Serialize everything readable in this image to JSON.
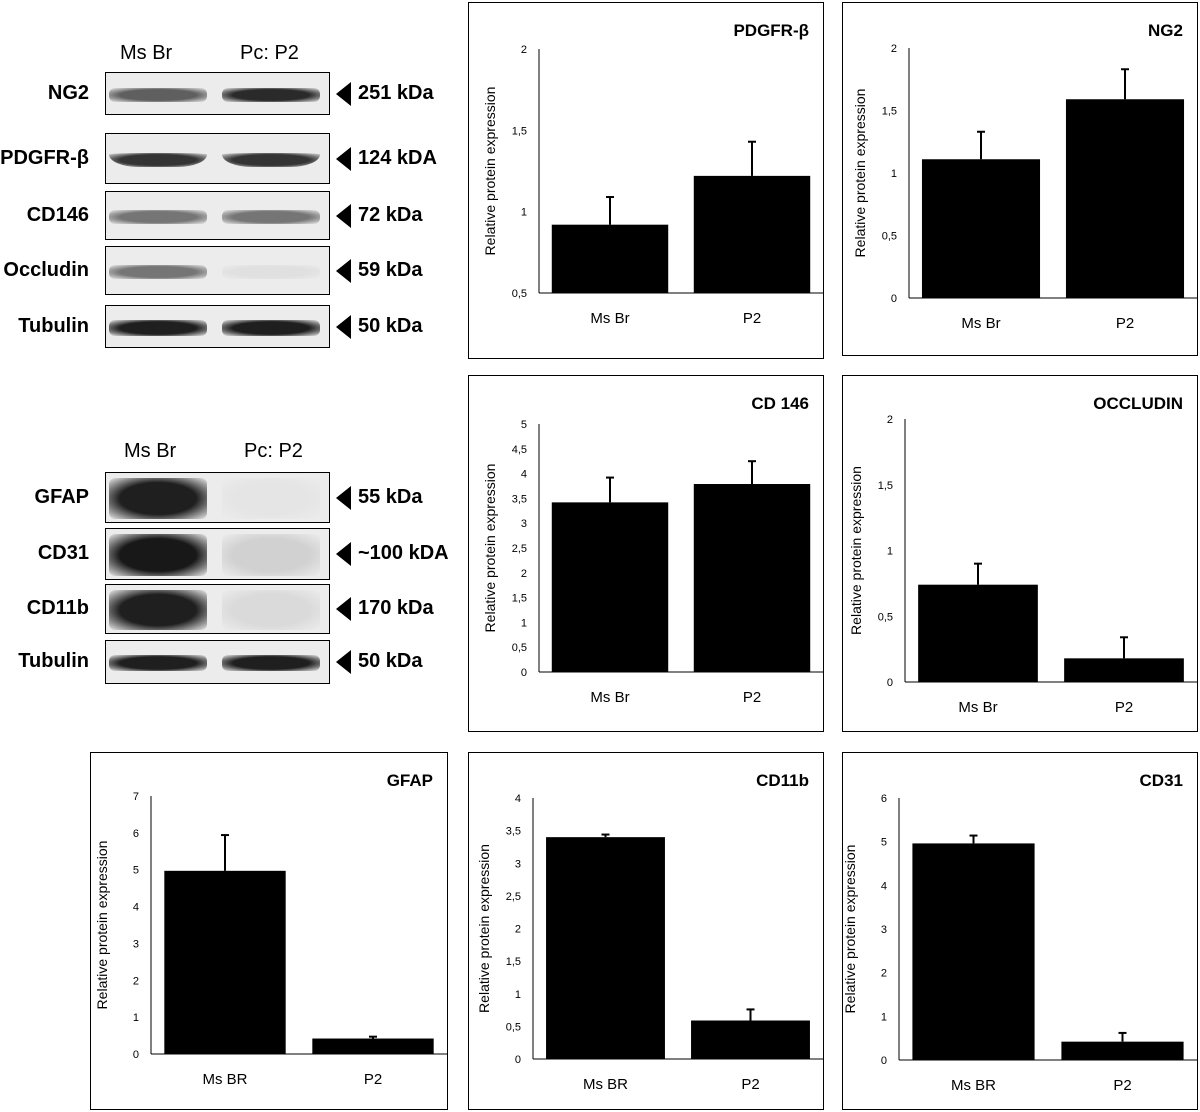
{
  "blots": [
    {
      "header_left": "Ms Br",
      "header_right": "Pc: P2",
      "rows": [
        {
          "label": "NG2",
          "kda": "251 kDa",
          "intensity_left": 0.65,
          "intensity_right": 0.9
        },
        {
          "label": "PDGFR-β",
          "kda": "124 kDA",
          "intensity_left": 0.85,
          "intensity_right": 0.85
        },
        {
          "label": "CD146",
          "kda": "72 kDa",
          "intensity_left": 0.55,
          "intensity_right": 0.55
        },
        {
          "label": "Occludin",
          "kda": "59 kDa",
          "intensity_left": 0.55,
          "intensity_right": 0.05
        },
        {
          "label": "Tubulin",
          "kda": "50 kDa",
          "intensity_left": 0.95,
          "intensity_right": 0.95
        }
      ]
    },
    {
      "header_left": "Ms Br",
      "header_right": "Pc: P2",
      "rows": [
        {
          "label": "GFAP",
          "kda": "55 kDa",
          "intensity_left": 0.95,
          "intensity_right": 0.03
        },
        {
          "label": "CD31",
          "kda": "~100 kDA",
          "intensity_left": 0.98,
          "intensity_right": 0.12
        },
        {
          "label": "CD11b",
          "kda": "170 kDa",
          "intensity_left": 0.95,
          "intensity_right": 0.08
        },
        {
          "label": "Tubulin",
          "kda": "50 kDa",
          "intensity_left": 0.95,
          "intensity_right": 0.95
        }
      ]
    }
  ],
  "chart_data": [
    {
      "type": "bar",
      "title": "PDGFR-β",
      "ylabel": "Relative protein expression",
      "categories": [
        "Ms Br",
        "P2"
      ],
      "values": [
        0.92,
        1.22
      ],
      "errors": [
        0.17,
        0.21
      ],
      "ylim": [
        0.5,
        2
      ],
      "yticks": [
        "0,5",
        "1",
        "1,5",
        "2"
      ]
    },
    {
      "type": "bar",
      "title": "NG2",
      "ylabel": "Relative protein expression",
      "categories": [
        "Ms Br",
        "P2"
      ],
      "values": [
        1.11,
        1.59
      ],
      "errors": [
        0.22,
        0.24
      ],
      "ylim": [
        0,
        2
      ],
      "yticks": [
        "0",
        "0,5",
        "1",
        "1,5",
        "2"
      ]
    },
    {
      "type": "bar",
      "title": "CD 146",
      "ylabel": "Relative protein expression",
      "categories": [
        "Ms Br",
        "P2"
      ],
      "values": [
        3.42,
        3.79
      ],
      "errors": [
        0.5,
        0.46
      ],
      "ylim": [
        0,
        5
      ],
      "yticks": [
        "0",
        "0,5",
        "1",
        "1,5",
        "2",
        "2,5",
        "3",
        "3,5",
        "4",
        "4,5",
        "5"
      ]
    },
    {
      "type": "bar",
      "title": "OCCLUDIN",
      "ylabel": "Relative protein expression",
      "categories": [
        "Ms Br",
        "P2"
      ],
      "values": [
        0.74,
        0.18
      ],
      "errors": [
        0.16,
        0.16
      ],
      "ylim": [
        0,
        2
      ],
      "yticks": [
        "0",
        "0,5",
        "1",
        "1,5",
        "2"
      ]
    },
    {
      "type": "bar",
      "title": "GFAP",
      "ylabel": "Relative protein expression",
      "categories": [
        "Ms BR",
        "P2"
      ],
      "values": [
        4.97,
        0.42
      ],
      "errors": [
        0.97,
        0.05
      ],
      "ylim": [
        0,
        7
      ],
      "yticks": [
        "0",
        "1",
        "2",
        "3",
        "4",
        "5",
        "6",
        "7"
      ]
    },
    {
      "type": "bar",
      "title": "CD11b",
      "ylabel": "Relative protein expression",
      "categories": [
        "Ms BR",
        "P2"
      ],
      "values": [
        3.4,
        0.59
      ],
      "errors": [
        0.04,
        0.17
      ],
      "ylim": [
        0,
        4
      ],
      "yticks": [
        "0",
        "0,5",
        "1",
        "1,5",
        "2",
        "2,5",
        "3",
        "3,5",
        "4"
      ]
    },
    {
      "type": "bar",
      "title": "CD31",
      "ylabel": "Relative protein expression",
      "categories": [
        "Ms BR",
        "P2"
      ],
      "values": [
        4.96,
        0.42
      ],
      "errors": [
        0.18,
        0.2
      ],
      "ylim": [
        0,
        6
      ],
      "yticks": [
        "0",
        "1",
        "2",
        "3",
        "4",
        "5",
        "6"
      ]
    }
  ]
}
